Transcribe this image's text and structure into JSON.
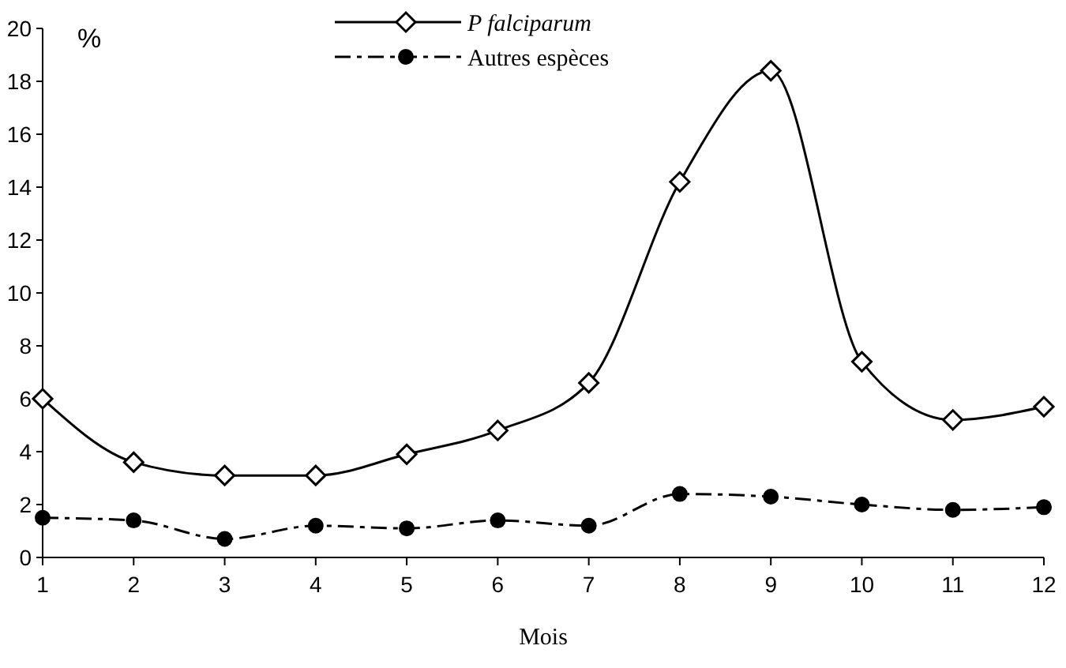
{
  "chart_data": {
    "type": "line",
    "ylabel": "%",
    "xlabel": "Mois",
    "x": [
      1,
      2,
      3,
      4,
      5,
      6,
      7,
      8,
      9,
      10,
      11,
      12
    ],
    "xlim": [
      1,
      12
    ],
    "xticks": [
      1,
      2,
      3,
      4,
      5,
      6,
      7,
      8,
      9,
      10,
      11,
      12
    ],
    "ylim": [
      0,
      20
    ],
    "yticks": [
      0,
      2,
      4,
      6,
      8,
      10,
      12,
      14,
      16,
      18,
      20
    ],
    "grid": false,
    "legend": "top",
    "series": [
      {
        "name": "P falciparum",
        "color": "#000000",
        "marker": "diamond",
        "line_style": "solid",
        "values": [
          6.0,
          3.6,
          3.1,
          3.1,
          3.9,
          4.8,
          6.6,
          14.2,
          18.4,
          7.4,
          5.2,
          5.7
        ]
      },
      {
        "name": "Autres espèces",
        "color": "#000000",
        "marker": "circle",
        "line_style": "dashed",
        "values": [
          1.5,
          1.4,
          0.7,
          1.2,
          1.1,
          1.4,
          1.2,
          2.4,
          2.3,
          2.0,
          1.8,
          1.9
        ]
      }
    ]
  }
}
